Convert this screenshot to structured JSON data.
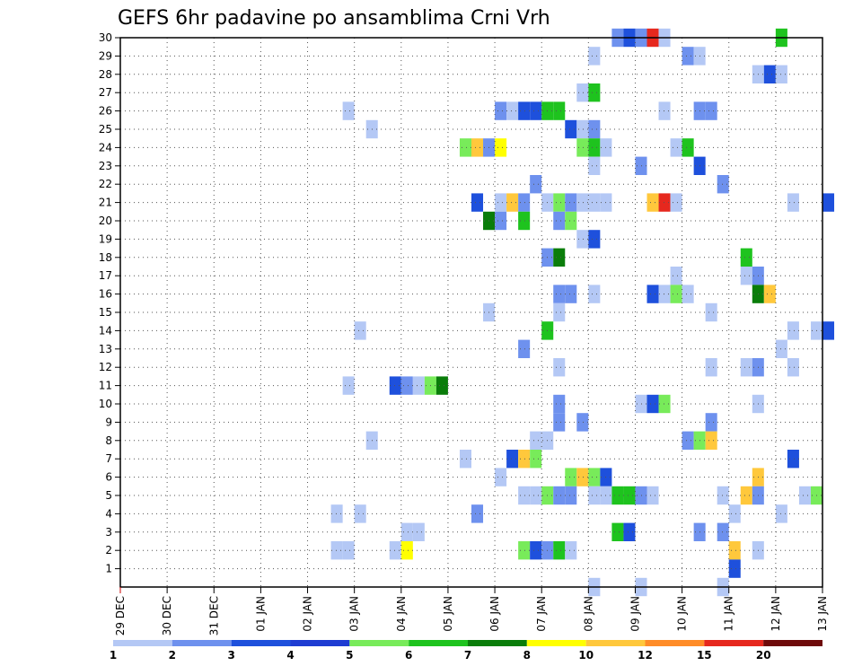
{
  "chart_data": {
    "type": "heatmap",
    "title": "GEFS 6hr padavine po ansamblima Crni Vrh",
    "x_tick_labels": [
      "29 DEC",
      "30 DEC",
      "31 DEC",
      "01 JAN",
      "02 JAN",
      "03 JAN",
      "04 JAN",
      "05 JAN",
      "06 JAN",
      "07 JAN",
      "08 JAN",
      "09 JAN",
      "10 JAN",
      "11 JAN",
      "12 JAN",
      "13 JAN"
    ],
    "y_range": [
      1,
      30
    ],
    "y_tick_labels": [
      "1",
      "2",
      "3",
      "4",
      "5",
      "6",
      "7",
      "8",
      "9",
      "10",
      "11",
      "12",
      "13",
      "14",
      "15",
      "16",
      "17",
      "18",
      "19",
      "20",
      "21",
      "22",
      "23",
      "24",
      "25",
      "26",
      "27",
      "28",
      "29",
      "30"
    ],
    "grid": true,
    "colorbar": {
      "labels": [
        "1",
        "2",
        "3",
        "4",
        "5",
        "6",
        "7",
        "8",
        "10",
        "12",
        "15",
        "20"
      ],
      "colors": [
        "#b4c8f5",
        "#6e91ee",
        "#1e50dc",
        "#1e3cd2",
        "#78eb5a",
        "#1ec31e",
        "#0a7d0a",
        "#ffff00",
        "#ffc83c",
        "#ff8c28",
        "#e6281e",
        "#6e0a0a"
      ]
    },
    "series_note": "columns are 6-hour steps starting 29 DEC 00z, rows are ensemble members",
    "cells": [
      {
        "m": 30,
        "t": 42,
        "c": 2
      },
      {
        "m": 30,
        "t": 43,
        "c": 3
      },
      {
        "m": 30,
        "t": 44,
        "c": 2
      },
      {
        "m": 30,
        "t": 45,
        "c": 11
      },
      {
        "m": 30,
        "t": 46,
        "c": 1
      },
      {
        "m": 30,
        "t": 56,
        "c": 6
      },
      {
        "m": 29,
        "t": 40,
        "c": 1
      },
      {
        "m": 29,
        "t": 48,
        "c": 2
      },
      {
        "m": 29,
        "t": 49,
        "c": 1
      },
      {
        "m": 28,
        "t": 54,
        "c": 1
      },
      {
        "m": 28,
        "t": 55,
        "c": 3
      },
      {
        "m": 28,
        "t": 56,
        "c": 1
      },
      {
        "m": 27,
        "t": 39,
        "c": 1
      },
      {
        "m": 27,
        "t": 40,
        "c": 6
      },
      {
        "m": 26,
        "t": 19,
        "c": 1
      },
      {
        "m": 26,
        "t": 32,
        "c": 2
      },
      {
        "m": 26,
        "t": 33,
        "c": 1
      },
      {
        "m": 26,
        "t": 34,
        "c": 3
      },
      {
        "m": 26,
        "t": 35,
        "c": 3
      },
      {
        "m": 26,
        "t": 36,
        "c": 6
      },
      {
        "m": 26,
        "t": 37,
        "c": 6
      },
      {
        "m": 26,
        "t": 46,
        "c": 1
      },
      {
        "m": 26,
        "t": 49,
        "c": 2
      },
      {
        "m": 26,
        "t": 50,
        "c": 2
      },
      {
        "m": 25,
        "t": 21,
        "c": 1
      },
      {
        "m": 25,
        "t": 38,
        "c": 3
      },
      {
        "m": 25,
        "t": 39,
        "c": 1
      },
      {
        "m": 25,
        "t": 40,
        "c": 2
      },
      {
        "m": 24,
        "t": 29,
        "c": 5
      },
      {
        "m": 24,
        "t": 30,
        "c": 9
      },
      {
        "m": 24,
        "t": 31,
        "c": 2
      },
      {
        "m": 24,
        "t": 32,
        "c": 8
      },
      {
        "m": 24,
        "t": 39,
        "c": 5
      },
      {
        "m": 24,
        "t": 40,
        "c": 6
      },
      {
        "m": 24,
        "t": 41,
        "c": 1
      },
      {
        "m": 24,
        "t": 47,
        "c": 1
      },
      {
        "m": 24,
        "t": 48,
        "c": 6
      },
      {
        "m": 23,
        "t": 40,
        "c": 1
      },
      {
        "m": 23,
        "t": 44,
        "c": 2
      },
      {
        "m": 23,
        "t": 49,
        "c": 3
      },
      {
        "m": 22,
        "t": 35,
        "c": 2
      },
      {
        "m": 22,
        "t": 51,
        "c": 2
      },
      {
        "m": 21,
        "t": 30,
        "c": 3
      },
      {
        "m": 21,
        "t": 32,
        "c": 1
      },
      {
        "m": 21,
        "t": 33,
        "c": 9
      },
      {
        "m": 21,
        "t": 34,
        "c": 2
      },
      {
        "m": 21,
        "t": 36,
        "c": 1
      },
      {
        "m": 21,
        "t": 37,
        "c": 5
      },
      {
        "m": 21,
        "t": 38,
        "c": 2
      },
      {
        "m": 21,
        "t": 39,
        "c": 1
      },
      {
        "m": 21,
        "t": 40,
        "c": 1
      },
      {
        "m": 21,
        "t": 41,
        "c": 1
      },
      {
        "m": 21,
        "t": 45,
        "c": 9
      },
      {
        "m": 21,
        "t": 46,
        "c": 11
      },
      {
        "m": 21,
        "t": 47,
        "c": 1
      },
      {
        "m": 21,
        "t": 57,
        "c": 1
      },
      {
        "m": 21,
        "t": 60,
        "c": 3
      },
      {
        "m": 20,
        "t": 31,
        "c": 7
      },
      {
        "m": 20,
        "t": 32,
        "c": 2
      },
      {
        "m": 20,
        "t": 34,
        "c": 6
      },
      {
        "m": 20,
        "t": 37,
        "c": 2
      },
      {
        "m": 20,
        "t": 38,
        "c": 5
      },
      {
        "m": 19,
        "t": 39,
        "c": 1
      },
      {
        "m": 19,
        "t": 40,
        "c": 3
      },
      {
        "m": 18,
        "t": 36,
        "c": 2
      },
      {
        "m": 18,
        "t": 37,
        "c": 7
      },
      {
        "m": 18,
        "t": 53,
        "c": 6
      },
      {
        "m": 17,
        "t": 47,
        "c": 1
      },
      {
        "m": 17,
        "t": 53,
        "c": 1
      },
      {
        "m": 17,
        "t": 54,
        "c": 2
      },
      {
        "m": 16,
        "t": 37,
        "c": 2
      },
      {
        "m": 16,
        "t": 38,
        "c": 2
      },
      {
        "m": 16,
        "t": 40,
        "c": 1
      },
      {
        "m": 16,
        "t": 45,
        "c": 3
      },
      {
        "m": 16,
        "t": 46,
        "c": 1
      },
      {
        "m": 16,
        "t": 47,
        "c": 5
      },
      {
        "m": 16,
        "t": 48,
        "c": 1
      },
      {
        "m": 16,
        "t": 54,
        "c": 7
      },
      {
        "m": 16,
        "t": 55,
        "c": 9
      },
      {
        "m": 15,
        "t": 31,
        "c": 1
      },
      {
        "m": 15,
        "t": 37,
        "c": 1
      },
      {
        "m": 15,
        "t": 50,
        "c": 1
      },
      {
        "m": 14,
        "t": 20,
        "c": 1
      },
      {
        "m": 14,
        "t": 36,
        "c": 6
      },
      {
        "m": 14,
        "t": 57,
        "c": 1
      },
      {
        "m": 14,
        "t": 59,
        "c": 1
      },
      {
        "m": 14,
        "t": 60,
        "c": 3
      },
      {
        "m": 13,
        "t": 34,
        "c": 2
      },
      {
        "m": 13,
        "t": 56,
        "c": 1
      },
      {
        "m": 12,
        "t": 37,
        "c": 1
      },
      {
        "m": 12,
        "t": 50,
        "c": 1
      },
      {
        "m": 12,
        "t": 53,
        "c": 1
      },
      {
        "m": 12,
        "t": 54,
        "c": 2
      },
      {
        "m": 12,
        "t": 57,
        "c": 1
      },
      {
        "m": 11,
        "t": 19,
        "c": 1
      },
      {
        "m": 11,
        "t": 23,
        "c": 3
      },
      {
        "m": 11,
        "t": 24,
        "c": 2
      },
      {
        "m": 11,
        "t": 25,
        "c": 1
      },
      {
        "m": 11,
        "t": 26,
        "c": 5
      },
      {
        "m": 11,
        "t": 27,
        "c": 7
      },
      {
        "m": 10,
        "t": 37,
        "c": 2
      },
      {
        "m": 10,
        "t": 44,
        "c": 1
      },
      {
        "m": 10,
        "t": 45,
        "c": 3
      },
      {
        "m": 10,
        "t": 46,
        "c": 5
      },
      {
        "m": 10,
        "t": 54,
        "c": 1
      },
      {
        "m": 9,
        "t": 37,
        "c": 2
      },
      {
        "m": 9,
        "t": 39,
        "c": 2
      },
      {
        "m": 9,
        "t": 50,
        "c": 2
      },
      {
        "m": 8,
        "t": 21,
        "c": 1
      },
      {
        "m": 8,
        "t": 35,
        "c": 1
      },
      {
        "m": 8,
        "t": 36,
        "c": 1
      },
      {
        "m": 8,
        "t": 48,
        "c": 2
      },
      {
        "m": 8,
        "t": 49,
        "c": 5
      },
      {
        "m": 8,
        "t": 50,
        "c": 9
      },
      {
        "m": 7,
        "t": 29,
        "c": 1
      },
      {
        "m": 7,
        "t": 33,
        "c": 3
      },
      {
        "m": 7,
        "t": 34,
        "c": 9
      },
      {
        "m": 7,
        "t": 35,
        "c": 5
      },
      {
        "m": 7,
        "t": 57,
        "c": 3
      },
      {
        "m": 6,
        "t": 32,
        "c": 1
      },
      {
        "m": 6,
        "t": 38,
        "c": 5
      },
      {
        "m": 6,
        "t": 39,
        "c": 9
      },
      {
        "m": 6,
        "t": 40,
        "c": 5
      },
      {
        "m": 6,
        "t": 41,
        "c": 3
      },
      {
        "m": 6,
        "t": 54,
        "c": 9
      },
      {
        "m": 5,
        "t": 34,
        "c": 1
      },
      {
        "m": 5,
        "t": 35,
        "c": 1
      },
      {
        "m": 5,
        "t": 36,
        "c": 5
      },
      {
        "m": 5,
        "t": 37,
        "c": 2
      },
      {
        "m": 5,
        "t": 38,
        "c": 2
      },
      {
        "m": 5,
        "t": 40,
        "c": 1
      },
      {
        "m": 5,
        "t": 41,
        "c": 1
      },
      {
        "m": 5,
        "t": 42,
        "c": 6
      },
      {
        "m": 5,
        "t": 43,
        "c": 6
      },
      {
        "m": 5,
        "t": 44,
        "c": 2
      },
      {
        "m": 5,
        "t": 45,
        "c": 1
      },
      {
        "m": 5,
        "t": 51,
        "c": 1
      },
      {
        "m": 5,
        "t": 53,
        "c": 9
      },
      {
        "m": 5,
        "t": 54,
        "c": 2
      },
      {
        "m": 5,
        "t": 58,
        "c": 1
      },
      {
        "m": 5,
        "t": 59,
        "c": 5
      },
      {
        "m": 4,
        "t": 18,
        "c": 1
      },
      {
        "m": 4,
        "t": 20,
        "c": 1
      },
      {
        "m": 4,
        "t": 30,
        "c": 2
      },
      {
        "m": 4,
        "t": 52,
        "c": 1
      },
      {
        "m": 4,
        "t": 56,
        "c": 1
      },
      {
        "m": 3,
        "t": 24,
        "c": 1
      },
      {
        "m": 3,
        "t": 25,
        "c": 1
      },
      {
        "m": 3,
        "t": 42,
        "c": 6
      },
      {
        "m": 3,
        "t": 43,
        "c": 3
      },
      {
        "m": 3,
        "t": 49,
        "c": 2
      },
      {
        "m": 3,
        "t": 51,
        "c": 2
      },
      {
        "m": 2,
        "t": 18,
        "c": 1
      },
      {
        "m": 2,
        "t": 19,
        "c": 1
      },
      {
        "m": 2,
        "t": 23,
        "c": 1
      },
      {
        "m": 2,
        "t": 24,
        "c": 8
      },
      {
        "m": 2,
        "t": 34,
        "c": 5
      },
      {
        "m": 2,
        "t": 35,
        "c": 3
      },
      {
        "m": 2,
        "t": 36,
        "c": 2
      },
      {
        "m": 2,
        "t": 37,
        "c": 6
      },
      {
        "m": 2,
        "t": 38,
        "c": 1
      },
      {
        "m": 2,
        "t": 52,
        "c": 9
      },
      {
        "m": 2,
        "t": 54,
        "c": 1
      },
      {
        "m": 1,
        "t": 52,
        "c": 3
      },
      {
        "m": 0,
        "t": 40,
        "c": 1
      },
      {
        "m": 0,
        "t": 44,
        "c": 1
      },
      {
        "m": 0,
        "t": 51,
        "c": 1
      }
    ]
  }
}
